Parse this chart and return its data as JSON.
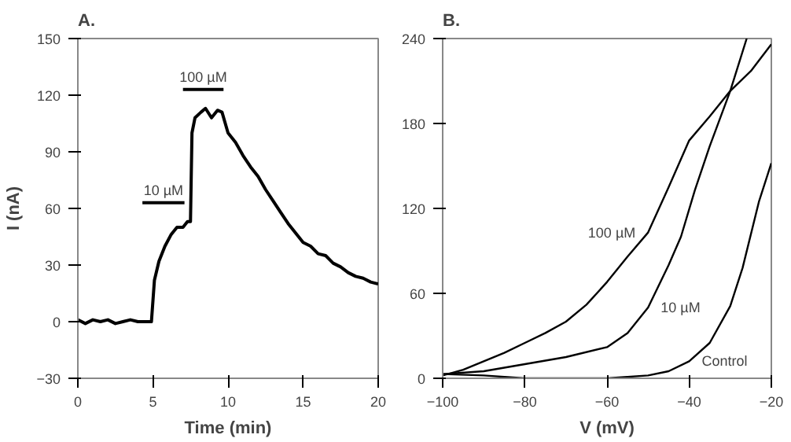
{
  "chart_data": [
    {
      "type": "line",
      "title": "A.",
      "xlabel": "Time (min)",
      "ylabel": "I (nA)",
      "xlim": [
        0,
        20
      ],
      "ylim": [
        -30,
        150
      ],
      "xticks": [
        0,
        5,
        10,
        15,
        20
      ],
      "yticks": [
        -30,
        0,
        30,
        60,
        90,
        120,
        150
      ],
      "grid": false,
      "marker": "none",
      "line_style": "solid",
      "series": [
        {
          "color": "#000000",
          "x": [
            0,
            0.5,
            1,
            1.5,
            2,
            2.5,
            3,
            3.5,
            4,
            4.5,
            4.9,
            5.1,
            5.4,
            5.8,
            6.2,
            6.6,
            7.0,
            7.3,
            7.5,
            7.6,
            7.8,
            8.2,
            8.5,
            8.9,
            9.3,
            9.6,
            10,
            10.5,
            11,
            11.5,
            12,
            12.5,
            13,
            13.5,
            14,
            14.5,
            15,
            15.5,
            16,
            16.5,
            17,
            17.5,
            18,
            18.5,
            19,
            19.5,
            20
          ],
          "values": [
            1,
            -1,
            1,
            0,
            1,
            -1,
            0,
            1,
            0,
            0,
            0,
            22,
            32,
            40,
            46,
            50,
            50,
            53,
            53,
            100,
            108,
            111,
            113,
            108,
            112,
            111,
            100,
            95,
            88,
            82,
            77,
            70,
            64,
            58,
            52,
            47,
            42,
            40,
            36,
            35,
            31,
            29,
            26,
            24,
            23,
            21,
            20
          ]
        },
        {
          "color": "#000000",
          "x": [
            4.3,
            7.1
          ],
          "values": [
            63,
            63
          ]
        },
        {
          "color": "#000000",
          "x": [
            7.0,
            9.7
          ],
          "values": [
            123,
            123
          ]
        }
      ],
      "annotations": [
        {
          "text": "10 µM",
          "x": 5.7,
          "y": 63
        },
        {
          "text": "100 µM",
          "x": 8.35,
          "y": 123
        }
      ]
    },
    {
      "type": "line",
      "title": "B.",
      "xlabel": "V (mV)",
      "xlim": [
        -100,
        -20
      ],
      "ylim": [
        0,
        240
      ],
      "xticks": [
        -100,
        -80,
        -60,
        -40,
        -20
      ],
      "yticks": [
        0,
        60,
        120,
        180,
        240
      ],
      "grid": false,
      "marker": "none",
      "line_style": "solid",
      "series": [
        {
          "name": "100 µM",
          "color": "#000000",
          "x": [
            -100,
            -95,
            -90,
            -85,
            -80,
            -75,
            -70,
            -65,
            -60,
            -55,
            -50,
            -45,
            -40,
            -35,
            -30,
            -25,
            -20
          ],
          "values": [
            2,
            6,
            12,
            18,
            25,
            32,
            40,
            52,
            68,
            86,
            103,
            135,
            168,
            185,
            203,
            217,
            236
          ]
        },
        {
          "name": "10 µM",
          "color": "#000000",
          "x": [
            -100,
            -90,
            -80,
            -70,
            -60,
            -55,
            -50,
            -45,
            -42,
            -38.6,
            -35,
            -30,
            -26
          ],
          "values": [
            3,
            5,
            10,
            15,
            22,
            32,
            50,
            80,
            100,
            133,
            164,
            203,
            240
          ]
        },
        {
          "name": "Control",
          "color": "#000000",
          "x": [
            -100,
            -90,
            -80,
            -70,
            -60,
            -50,
            -45,
            -40,
            -35,
            -30,
            -27,
            -23,
            -20
          ],
          "values": [
            3,
            2,
            0,
            0,
            0,
            2,
            5,
            12,
            25,
            51,
            78,
            125,
            152
          ]
        }
      ]
    }
  ]
}
